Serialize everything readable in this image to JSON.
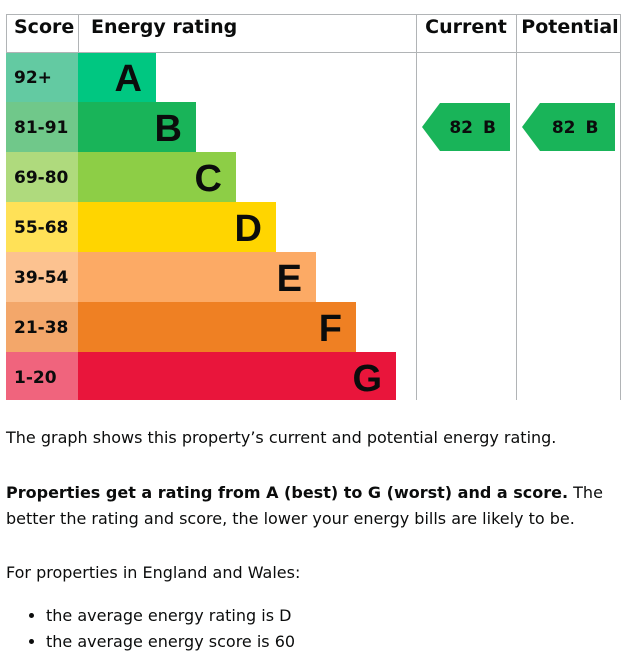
{
  "chart_data": {
    "type": "bar",
    "headers": {
      "score": "Score",
      "rating": "Energy rating",
      "current": "Current",
      "potential": "Potential"
    },
    "bands": [
      {
        "letter": "A",
        "range": "92+",
        "color": "#00c781",
        "tint": "#63caa2"
      },
      {
        "letter": "B",
        "range": "81-91",
        "color": "#19b459",
        "tint": "#70c88a"
      },
      {
        "letter": "C",
        "range": "69-80",
        "color": "#8dce46",
        "tint": "#afda7d"
      },
      {
        "letter": "D",
        "range": "55-68",
        "color": "#ffd500",
        "tint": "#ffe157"
      },
      {
        "letter": "E",
        "range": "39-54",
        "color": "#fcaa65",
        "tint": "#fcc290"
      },
      {
        "letter": "F",
        "range": "21-38",
        "color": "#ef8023",
        "tint": "#f3a76a"
      },
      {
        "letter": "G",
        "range": "1-20",
        "color": "#e9153b",
        "tint": "#f0647d"
      }
    ],
    "current": {
      "score": "82",
      "letter": "B",
      "color": "#19b459"
    },
    "potential": {
      "score": "82",
      "letter": "B",
      "color": "#19b459"
    }
  },
  "text": {
    "intro": "The graph shows this property’s current and potential energy rating.",
    "rating_bold": "Properties get a rating from A (best) to G (worst) and a score.",
    "rating_rest": " The better the rating and score, the lower your energy bills are likely to be.",
    "region": "For properties in England and Wales:",
    "averages": [
      "the average energy rating is D",
      "the average energy score is 60"
    ]
  }
}
